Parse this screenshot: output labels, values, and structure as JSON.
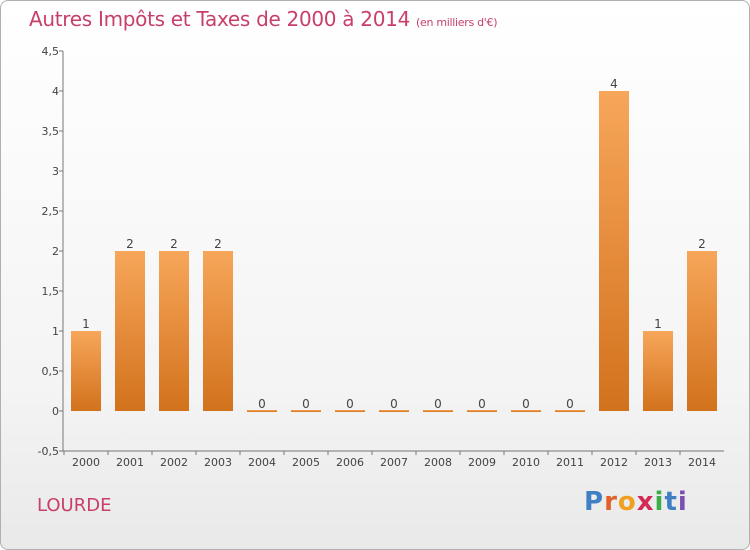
{
  "title": "Autres Impôts et Taxes de 2000 à 2014",
  "subtitle": "(en milliers d'€)",
  "location": "LOURDE",
  "logo": {
    "letters": [
      "P",
      "r",
      "o",
      "x",
      "i",
      "t",
      "i"
    ],
    "colors": [
      "#3f7fc3",
      "#e0622a",
      "#f0a020",
      "#d32a55",
      "#3cae49",
      "#3f7fc3",
      "#7a4fb0"
    ]
  },
  "colors": {
    "accent": "#c8406a",
    "bar_light": "#f7a65a",
    "bar_dark": "#d2721c"
  },
  "chart_data": {
    "type": "bar",
    "categories": [
      "2000",
      "2001",
      "2002",
      "2003",
      "2004",
      "2005",
      "2006",
      "2007",
      "2008",
      "2009",
      "2010",
      "2011",
      "2012",
      "2013",
      "2014"
    ],
    "values": [
      1,
      2,
      2,
      2,
      0,
      0,
      0,
      0,
      0,
      0,
      0,
      0,
      4,
      1,
      2
    ],
    "data_labels": [
      "1",
      "2",
      "2",
      "2",
      "0",
      "0",
      "0",
      "0",
      "0",
      "0",
      "0",
      "0",
      "4",
      "1",
      "2"
    ],
    "ylim": [
      -0.5,
      4.5
    ],
    "yticks": [
      "-0,5",
      "0",
      "0,5",
      "1",
      "1,5",
      "2",
      "2,5",
      "3",
      "3,5",
      "4",
      "4,5"
    ],
    "ytick_values": [
      -0.5,
      0,
      0.5,
      1,
      1.5,
      2,
      2.5,
      3,
      3.5,
      4,
      4.5
    ],
    "grid": false,
    "title": "Autres Impôts et Taxes de 2000 à 2014",
    "xlabel": "",
    "ylabel": ""
  }
}
